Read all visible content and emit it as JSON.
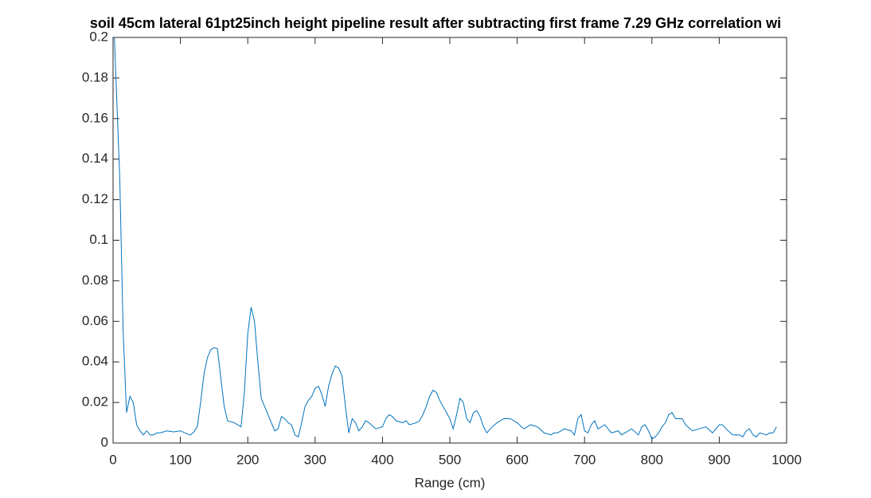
{
  "chart_data": {
    "type": "line",
    "title": "soil 45cm lateral 61pt25inch height pipeline result after subtracting first frame 7.29 GHz correlation wi",
    "x_label": "Range (cm)",
    "x": [
      2,
      10,
      15,
      20,
      25,
      30,
      35,
      40,
      45,
      50,
      55,
      60,
      65,
      70,
      80,
      90,
      100,
      110,
      115,
      120,
      125,
      130,
      135,
      140,
      145,
      150,
      155,
      160,
      165,
      170,
      180,
      190,
      195,
      200,
      205,
      210,
      215,
      220,
      230,
      240,
      245,
      250,
      255,
      260,
      265,
      270,
      275,
      280,
      285,
      290,
      295,
      300,
      305,
      310,
      315,
      320,
      325,
      330,
      335,
      340,
      345,
      350,
      355,
      360,
      365,
      370,
      375,
      380,
      390,
      400,
      405,
      410,
      415,
      420,
      430,
      435,
      440,
      450,
      455,
      460,
      465,
      470,
      475,
      480,
      485,
      490,
      495,
      500,
      505,
      510,
      515,
      520,
      525,
      530,
      535,
      540,
      545,
      550,
      555,
      560,
      570,
      580,
      590,
      600,
      610,
      620,
      630,
      640,
      650,
      655,
      660,
      670,
      680,
      685,
      690,
      695,
      700,
      705,
      710,
      715,
      720,
      730,
      740,
      750,
      755,
      760,
      770,
      780,
      785,
      790,
      795,
      800,
      805,
      810,
      815,
      820,
      825,
      830,
      835,
      840,
      845,
      850,
      860,
      870,
      880,
      890,
      895,
      900,
      905,
      910,
      920,
      930,
      935,
      940,
      945,
      950,
      955,
      960,
      970,
      975,
      980,
      985
    ],
    "series": [
      {
        "color": "#0072bd",
        "values": [
          0.2,
          0.13,
          0.055,
          0.015,
          0.023,
          0.02,
          0.009,
          0.006,
          0.004,
          0.006,
          0.004,
          0.004,
          0.005,
          0.005,
          0.006,
          0.0055,
          0.006,
          0.0045,
          0.004,
          0.0055,
          0.008,
          0.02,
          0.034,
          0.042,
          0.046,
          0.047,
          0.0465,
          0.032,
          0.018,
          0.011,
          0.01,
          0.008,
          0.025,
          0.054,
          0.067,
          0.06,
          0.04,
          0.022,
          0.014,
          0.006,
          0.007,
          0.013,
          0.012,
          0.01,
          0.009,
          0.004,
          0.003,
          0.01,
          0.018,
          0.021,
          0.023,
          0.027,
          0.028,
          0.024,
          0.018,
          0.028,
          0.034,
          0.038,
          0.037,
          0.033,
          0.018,
          0.005,
          0.012,
          0.01,
          0.006,
          0.008,
          0.011,
          0.01,
          0.007,
          0.008,
          0.012,
          0.014,
          0.013,
          0.011,
          0.01,
          0.011,
          0.009,
          0.01,
          0.011,
          0.014,
          0.018,
          0.023,
          0.026,
          0.025,
          0.021,
          0.018,
          0.015,
          0.012,
          0.007,
          0.014,
          0.022,
          0.02,
          0.012,
          0.01,
          0.015,
          0.016,
          0.013,
          0.008,
          0.005,
          0.007,
          0.01,
          0.012,
          0.012,
          0.01,
          0.007,
          0.009,
          0.008,
          0.005,
          0.004,
          0.005,
          0.005,
          0.007,
          0.006,
          0.004,
          0.012,
          0.014,
          0.006,
          0.005,
          0.009,
          0.011,
          0.007,
          0.009,
          0.005,
          0.006,
          0.004,
          0.005,
          0.007,
          0.004,
          0.008,
          0.009,
          0.006,
          0.002,
          0.003,
          0.005,
          0.008,
          0.01,
          0.014,
          0.015,
          0.012,
          0.012,
          0.012,
          0.009,
          0.006,
          0.007,
          0.008,
          0.005,
          0.007,
          0.009,
          0.009,
          0.007,
          0.004,
          0.004,
          0.003,
          0.006,
          0.007,
          0.004,
          0.003,
          0.005,
          0.004,
          0.005,
          0.005,
          0.008
        ]
      }
    ],
    "xlim": [
      0,
      1000
    ],
    "xticks": [
      0,
      100,
      200,
      300,
      400,
      500,
      600,
      700,
      800,
      900,
      1000
    ],
    "ylim": [
      0,
      0.2
    ],
    "yticks": [
      0,
      0.02,
      0.04,
      0.06,
      0.08,
      0.1,
      0.12,
      0.14,
      0.16,
      0.18,
      0.2
    ],
    "grid": false
  }
}
